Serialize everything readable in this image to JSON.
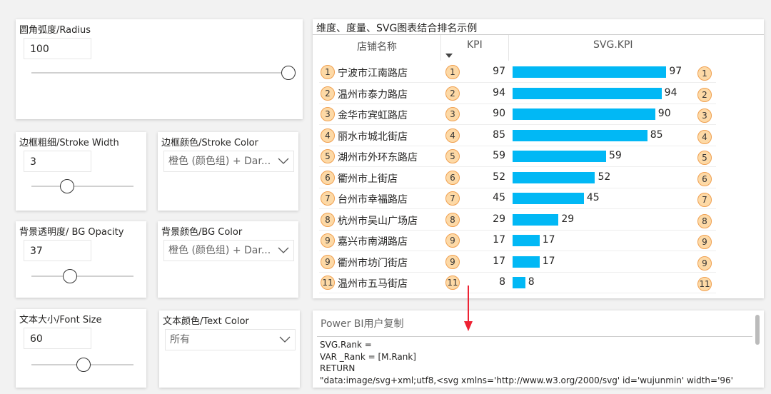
{
  "slicers": [
    {
      "title": "圆角弧度/Radius",
      "value": "100"
    },
    {
      "title": "边框粗细/Stroke Width",
      "value": "3"
    },
    {
      "title": "背景透明度/ BG Opacity",
      "value": "37"
    },
    {
      "title": "文本大小/Font Size",
      "value": "60"
    }
  ],
  "dropdowns": [
    {
      "title": "边框颜色/Stroke Color",
      "value": "橙色 (颜色组) + Dar..."
    },
    {
      "title": "背景颜色/BG Color",
      "value": "橙色 (颜色组) + Dar..."
    },
    {
      "title": "文本颜色/Text Color",
      "value": "所有"
    }
  ],
  "table": {
    "title": "维度、度量、SVG图表结合排名示例",
    "headers": [
      "店铺名称",
      "KPI",
      "SVG.KPI"
    ],
    "rows": [
      {
        "rank": 1,
        "store": "宁波市江南路店",
        "kpi": 97
      },
      {
        "rank": 2,
        "store": "温州市泰力路店",
        "kpi": 94
      },
      {
        "rank": 3,
        "store": "金华市宾虹路店",
        "kpi": 90
      },
      {
        "rank": 4,
        "store": "丽水市城北街店",
        "kpi": 85
      },
      {
        "rank": 5,
        "store": "湖州市外环东路店",
        "kpi": 59
      },
      {
        "rank": 6,
        "store": "衢州市上街店",
        "kpi": 52
      },
      {
        "rank": 7,
        "store": "台州市幸福路店",
        "kpi": 45
      },
      {
        "rank": 8,
        "store": "杭州市吴山广场店",
        "kpi": 29
      },
      {
        "rank": 9,
        "store": "嘉兴市南湖路店",
        "kpi": 17
      },
      {
        "rank": 9,
        "store": "衢州市坊门街店",
        "kpi": 17
      },
      {
        "rank": 11,
        "store": "温州市五马街店",
        "kpi": 8
      }
    ]
  },
  "code": {
    "title": "Power BI用户复制",
    "lines": [
      "SVG.Rank =",
      "VAR _Rank = [M.Rank]",
      "RETURN",
      "\"data:image/svg+xml;utf8,<svg xmlns='http://www.w3.org/2000/svg' id='wujunmin' width='96'"
    ]
  }
}
